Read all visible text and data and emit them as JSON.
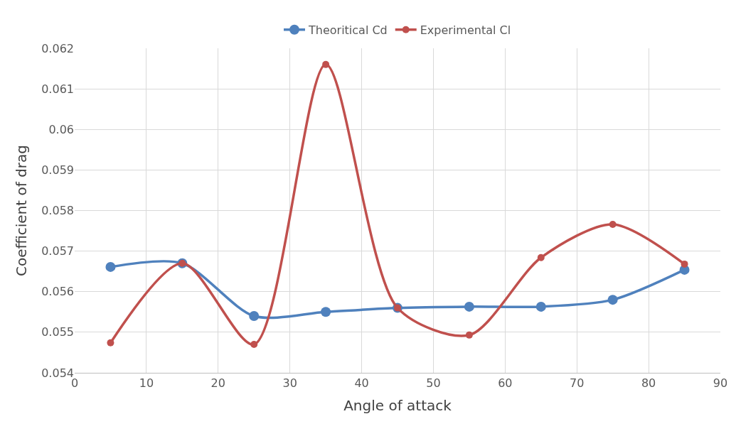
{
  "chart_data": {
    "type": "line",
    "xlabel": "Angle of attack",
    "ylabel": "Coefficient of drag",
    "x": [
      5,
      15,
      25,
      35,
      45,
      55,
      65,
      75,
      85
    ],
    "series": [
      {
        "name": "Theoritical Cd",
        "color": "#4f81bd",
        "values": [
          0.05661,
          0.0567,
          0.0554,
          0.0555,
          0.0556,
          0.05563,
          0.05563,
          0.0558,
          0.05654
        ]
      },
      {
        "name": "Experimental Cl",
        "color": "#c0504d",
        "values": [
          0.05474,
          0.0567,
          0.0547,
          0.0616,
          0.0556,
          0.05493,
          0.05684,
          0.05766,
          0.05668
        ]
      }
    ],
    "xlim": [
      0,
      90
    ],
    "xticks": [
      0,
      10,
      20,
      30,
      40,
      50,
      60,
      70,
      80,
      90
    ],
    "ylim": [
      0.054,
      0.062
    ],
    "yticks": [
      0.054,
      0.055,
      0.056,
      0.057,
      0.058,
      0.059,
      0.06,
      0.061,
      0.062
    ],
    "grid": true,
    "legend": "top",
    "marker": "circle",
    "line_style": "solid"
  }
}
